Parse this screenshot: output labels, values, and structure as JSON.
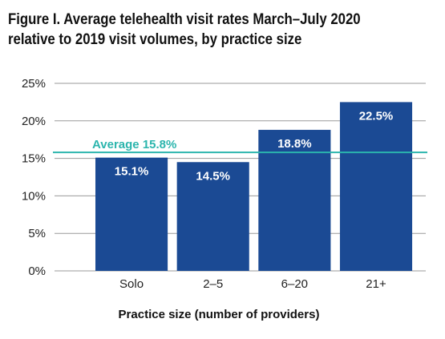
{
  "chart_data": {
    "type": "bar",
    "title_line1": "Figure I. Average telehealth visit rates March–July 2020",
    "title_line2": "relative to 2019 visit volumes, by practice size",
    "xlabel": "Practice size (number of providers)",
    "ylabel": "",
    "categories": [
      "Solo",
      "2–5",
      "6–20",
      "21+"
    ],
    "values": [
      15.1,
      14.5,
      18.8,
      22.5
    ],
    "value_labels": [
      "15.1%",
      "14.5%",
      "18.8%",
      "22.5%"
    ],
    "ylim": [
      0,
      25
    ],
    "yticks": [
      0,
      5,
      10,
      15,
      20,
      25
    ],
    "ytick_labels": [
      "0%",
      "5%",
      "10%",
      "15%",
      "20%",
      "25%"
    ],
    "reference_line": {
      "label": "Average 15.8%",
      "value": 15.8,
      "color": "#2bb5ad"
    },
    "bar_color": "#1b4a94",
    "grid": true,
    "legend": "none"
  }
}
